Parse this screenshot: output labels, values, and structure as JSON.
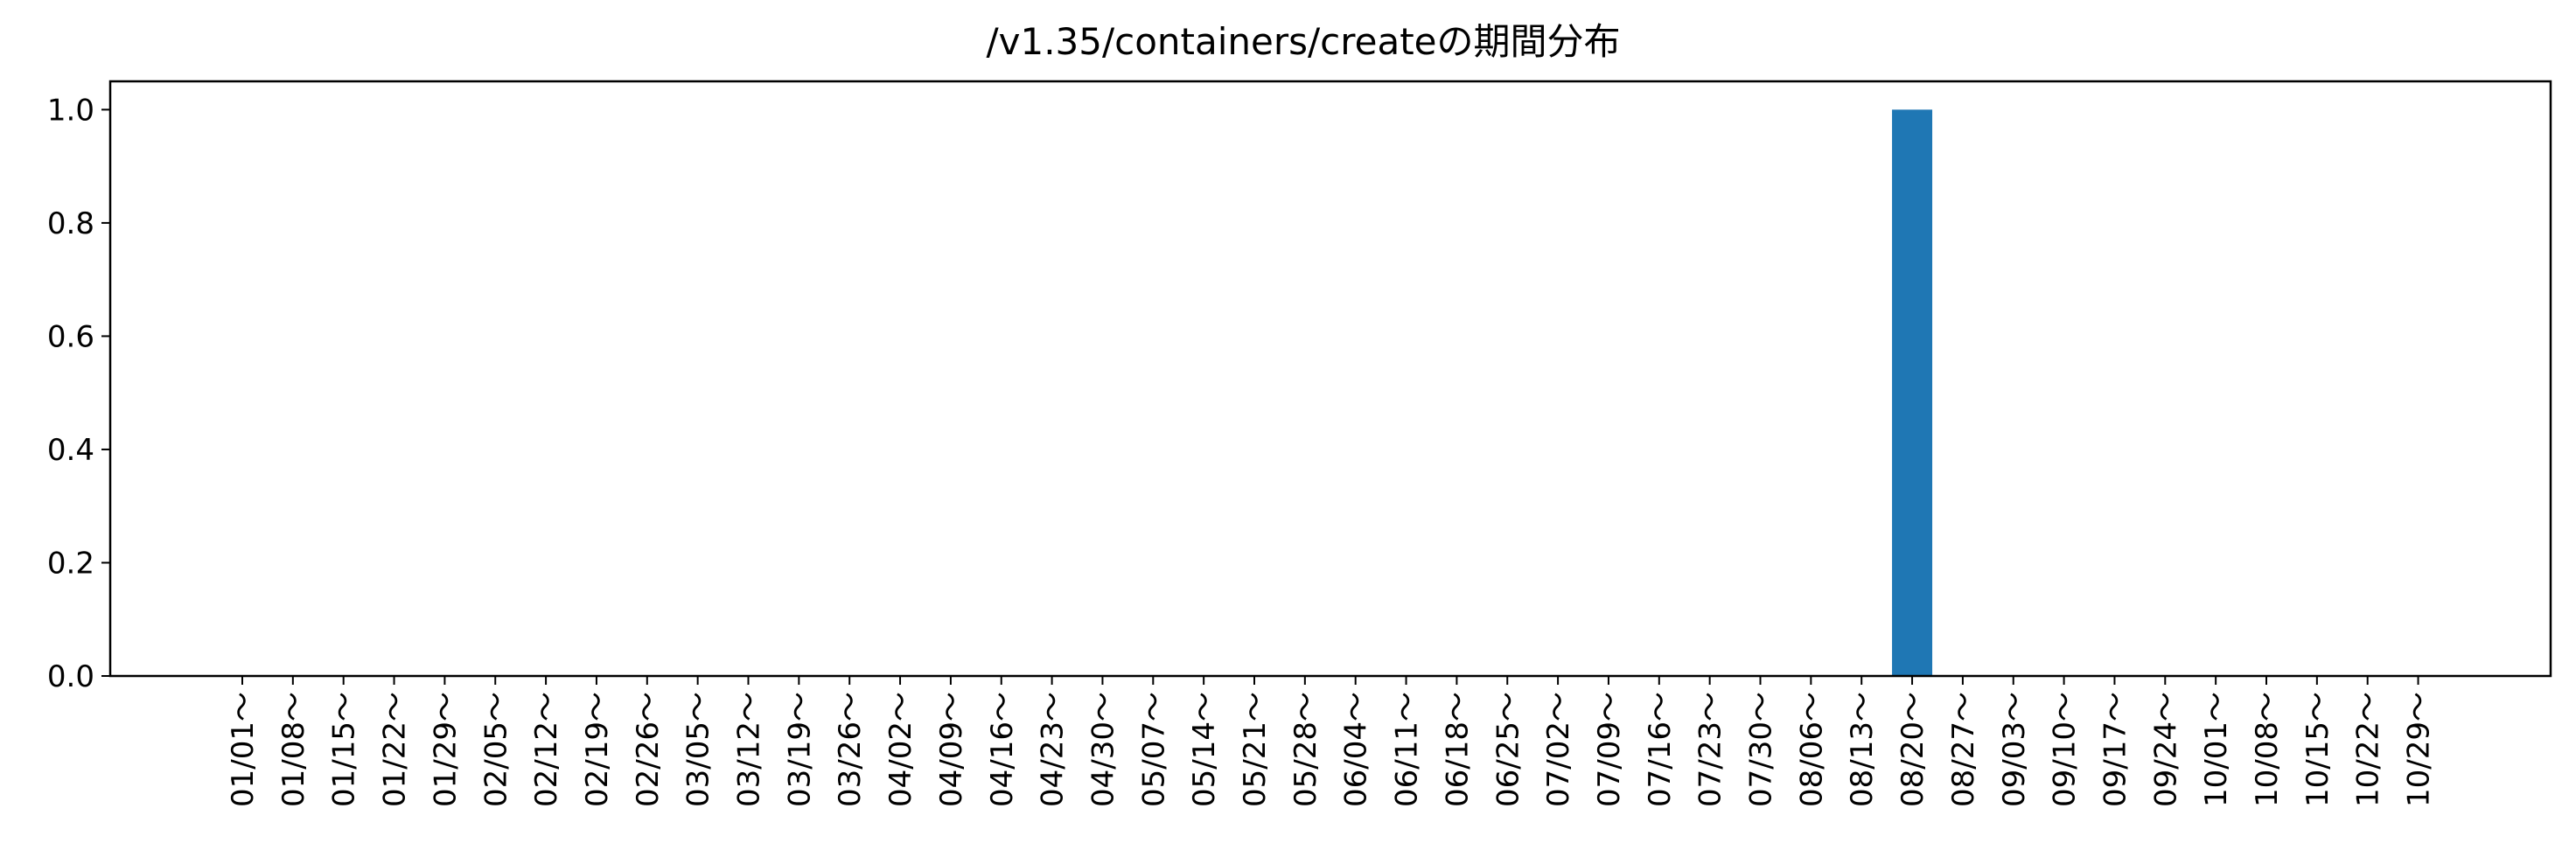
{
  "chart_data": {
    "type": "bar",
    "title": "/v1.35/containers/createの期間分布",
    "xlabel": "",
    "ylabel": "",
    "categories": [
      "01/01～",
      "01/08～",
      "01/15～",
      "01/22～",
      "01/29～",
      "02/05～",
      "02/12～",
      "02/19～",
      "02/26～",
      "03/05～",
      "03/12～",
      "03/19～",
      "03/26～",
      "04/02～",
      "04/09～",
      "04/16～",
      "04/23～",
      "04/30～",
      "05/07～",
      "05/14～",
      "05/21～",
      "05/28～",
      "06/04～",
      "06/11～",
      "06/18～",
      "06/25～",
      "07/02～",
      "07/09～",
      "07/16～",
      "07/23～",
      "07/30～",
      "08/06～",
      "08/13～",
      "08/20～",
      "08/27～",
      "09/03～",
      "09/10～",
      "09/17～",
      "09/24～",
      "10/01～",
      "10/08～",
      "10/15～",
      "10/22～",
      "10/29～"
    ],
    "values": [
      0,
      0,
      0,
      0,
      0,
      0,
      0,
      0,
      0,
      0,
      0,
      0,
      0,
      0,
      0,
      0,
      0,
      0,
      0,
      0,
      0,
      0,
      0,
      0,
      0,
      0,
      0,
      0,
      0,
      0,
      0,
      0,
      0,
      1,
      0,
      0,
      0,
      0,
      0,
      0,
      0,
      0,
      0,
      0
    ],
    "yticks": [
      "0.0",
      "0.2",
      "0.4",
      "0.6",
      "0.8",
      "1.0"
    ],
    "ylim": [
      0,
      1.05
    ],
    "grid": false,
    "bar_color": "#1f77b4"
  }
}
